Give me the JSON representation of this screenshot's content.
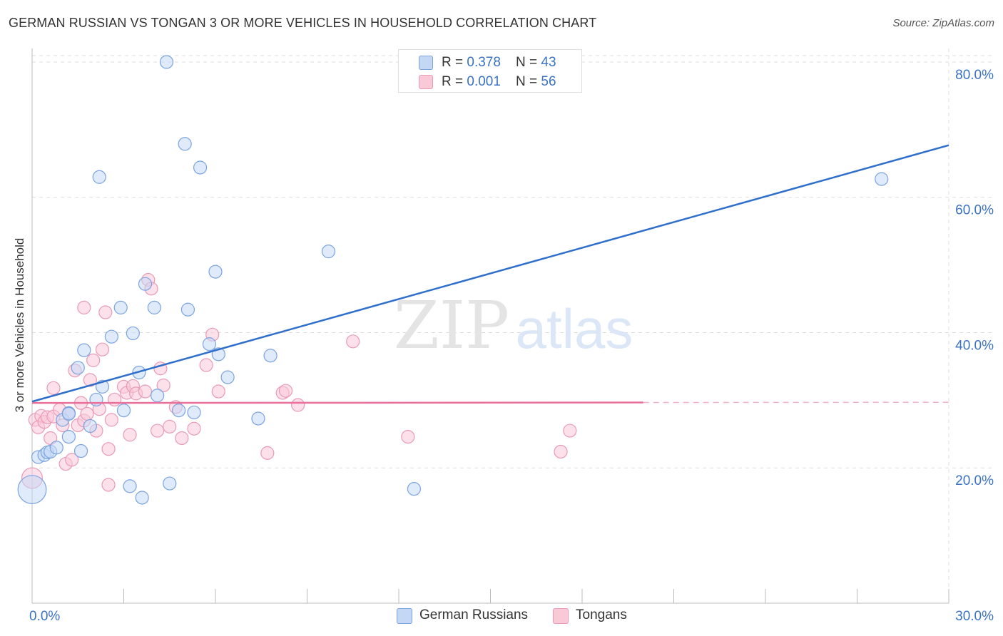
{
  "header": {
    "title": "GERMAN RUSSIAN VS TONGAN 3 OR MORE VEHICLES IN HOUSEHOLD CORRELATION CHART",
    "source": "Source: ZipAtlas.com"
  },
  "watermark": {
    "zip": "ZIP",
    "atlas": "atlas"
  },
  "legend": {
    "rows": [
      {
        "r_label": "R = ",
        "r_value": "0.378",
        "n_label": "N = ",
        "n_value": "43"
      },
      {
        "r_label": "R = ",
        "r_value": "0.001",
        "n_label": "N = ",
        "n_value": "56"
      }
    ]
  },
  "bottom_legend": [
    "German Russians",
    "Tongans"
  ],
  "colors": {
    "blue_fill": "#c4d8f6",
    "blue_stroke": "#7aa3e0",
    "blue_line": "#2f6fcc",
    "pink_fill": "#f9c9d8",
    "pink_stroke": "#e99ab5",
    "pink_line": "#e8709a",
    "tick_label": "#3a72c4",
    "grid": "#dddddd"
  },
  "chart_data": {
    "type": "scatter",
    "title": "GERMAN RUSSIAN VS TONGAN 3 OR MORE VEHICLES IN HOUSEHOLD CORRELATION CHART",
    "ylabel": "3 or more Vehicles in Household",
    "xlim": [
      0,
      30
    ],
    "ylim": [
      0,
      82
    ],
    "x_tick_labels": [
      {
        "value": 0,
        "label": "0.0%"
      },
      {
        "value": 30,
        "label": "30.0%"
      }
    ],
    "y_tick_labels": [
      {
        "value": 20,
        "label": "20.0%"
      },
      {
        "value": 40,
        "label": "40.0%"
      },
      {
        "value": 60,
        "label": "60.0%"
      },
      {
        "value": 80,
        "label": "80.0%"
      }
    ],
    "grid": true,
    "legend_position": "top-center",
    "series": [
      {
        "name": "German Russians",
        "R": 0.378,
        "N": 43,
        "trend": {
          "x": [
            0,
            30
          ],
          "y": [
            29.8,
            67.7
          ],
          "dashed_from": null
        },
        "points": [
          [
            0.0,
            16.8,
            2.2
          ],
          [
            0.2,
            21.6,
            1
          ],
          [
            0.4,
            21.9,
            1
          ],
          [
            0.5,
            22.3,
            1
          ],
          [
            0.6,
            22.4,
            1
          ],
          [
            0.8,
            23.0,
            1
          ],
          [
            1.0,
            27.1,
            1
          ],
          [
            1.2,
            28.1,
            1
          ],
          [
            1.2,
            24.6,
            1
          ],
          [
            1.5,
            34.8,
            1
          ],
          [
            1.6,
            22.5,
            1
          ],
          [
            1.7,
            37.4,
            1
          ],
          [
            1.9,
            26.2,
            1
          ],
          [
            2.1,
            30.1,
            1
          ],
          [
            2.2,
            63.0,
            1
          ],
          [
            2.3,
            32.0,
            1
          ],
          [
            2.6,
            39.4,
            1
          ],
          [
            2.9,
            43.7,
            1
          ],
          [
            3.0,
            28.5,
            1
          ],
          [
            3.2,
            17.3,
            1
          ],
          [
            3.3,
            39.9,
            1
          ],
          [
            3.5,
            34.1,
            1
          ],
          [
            3.6,
            15.6,
            1
          ],
          [
            3.7,
            47.2,
            1
          ],
          [
            4.0,
            43.7,
            1
          ],
          [
            4.1,
            30.7,
            1
          ],
          [
            4.4,
            80.0,
            1
          ],
          [
            4.5,
            17.7,
            1
          ],
          [
            4.8,
            28.5,
            1
          ],
          [
            5.0,
            67.9,
            1
          ],
          [
            5.1,
            43.4,
            1
          ],
          [
            5.3,
            28.2,
            1
          ],
          [
            5.5,
            64.4,
            1
          ],
          [
            5.8,
            38.3,
            1
          ],
          [
            6.0,
            49.0,
            1
          ],
          [
            6.1,
            36.8,
            1
          ],
          [
            6.4,
            33.4,
            1
          ],
          [
            7.4,
            27.3,
            1
          ],
          [
            7.8,
            36.6,
            1
          ],
          [
            9.7,
            52.0,
            1
          ],
          [
            12.5,
            16.9,
            1
          ],
          [
            27.8,
            62.7,
            1
          ],
          [
            1.2,
            28.0,
            1
          ]
        ]
      },
      {
        "name": "Tongans",
        "R": 0.001,
        "N": 56,
        "trend": {
          "x": [
            0,
            30
          ],
          "y": [
            29.6,
            29.7
          ],
          "dashed_from": 20
        },
        "points": [
          [
            0.0,
            18.5,
            1.6
          ],
          [
            0.1,
            27.1,
            1
          ],
          [
            0.2,
            26.0,
            1
          ],
          [
            0.3,
            27.7,
            1
          ],
          [
            0.4,
            26.8,
            1
          ],
          [
            0.5,
            27.5,
            1
          ],
          [
            0.6,
            24.4,
            1
          ],
          [
            0.7,
            31.8,
            1
          ],
          [
            0.7,
            27.6,
            1
          ],
          [
            0.9,
            28.6,
            1
          ],
          [
            1.0,
            26.3,
            1
          ],
          [
            1.1,
            20.6,
            1
          ],
          [
            1.2,
            28.1,
            1
          ],
          [
            1.3,
            21.2,
            1
          ],
          [
            1.4,
            34.4,
            1
          ],
          [
            1.5,
            26.3,
            1
          ],
          [
            1.6,
            29.6,
            1
          ],
          [
            1.7,
            27.0,
            1
          ],
          [
            1.7,
            43.7,
            1
          ],
          [
            1.8,
            28.0,
            1
          ],
          [
            1.9,
            33.0,
            1
          ],
          [
            2.0,
            35.9,
            1
          ],
          [
            2.1,
            25.5,
            1
          ],
          [
            2.2,
            28.7,
            1
          ],
          [
            2.3,
            37.5,
            1
          ],
          [
            2.4,
            43.0,
            1
          ],
          [
            2.5,
            22.8,
            1
          ],
          [
            2.5,
            17.5,
            1
          ],
          [
            2.6,
            27.1,
            1
          ],
          [
            2.7,
            30.1,
            1
          ],
          [
            3.0,
            32.0,
            1
          ],
          [
            3.1,
            31.1,
            1
          ],
          [
            3.2,
            24.9,
            1
          ],
          [
            3.3,
            32.1,
            1
          ],
          [
            3.4,
            31.0,
            1
          ],
          [
            3.7,
            31.3,
            1
          ],
          [
            3.8,
            47.8,
            1
          ],
          [
            3.9,
            46.5,
            1
          ],
          [
            4.1,
            25.5,
            1
          ],
          [
            4.2,
            34.7,
            1
          ],
          [
            4.3,
            32.2,
            1
          ],
          [
            4.5,
            26.1,
            1
          ],
          [
            4.7,
            29.0,
            1
          ],
          [
            4.9,
            24.4,
            1
          ],
          [
            5.3,
            25.8,
            1
          ],
          [
            5.7,
            35.2,
            1
          ],
          [
            5.9,
            39.7,
            1
          ],
          [
            6.1,
            31.3,
            1
          ],
          [
            7.7,
            22.2,
            1
          ],
          [
            8.2,
            31.1,
            1
          ],
          [
            8.3,
            31.4,
            1
          ],
          [
            8.7,
            29.3,
            1
          ],
          [
            10.5,
            38.7,
            1
          ],
          [
            12.3,
            24.6,
            1
          ],
          [
            17.3,
            22.4,
            1
          ],
          [
            17.6,
            25.5,
            1
          ]
        ]
      }
    ]
  }
}
